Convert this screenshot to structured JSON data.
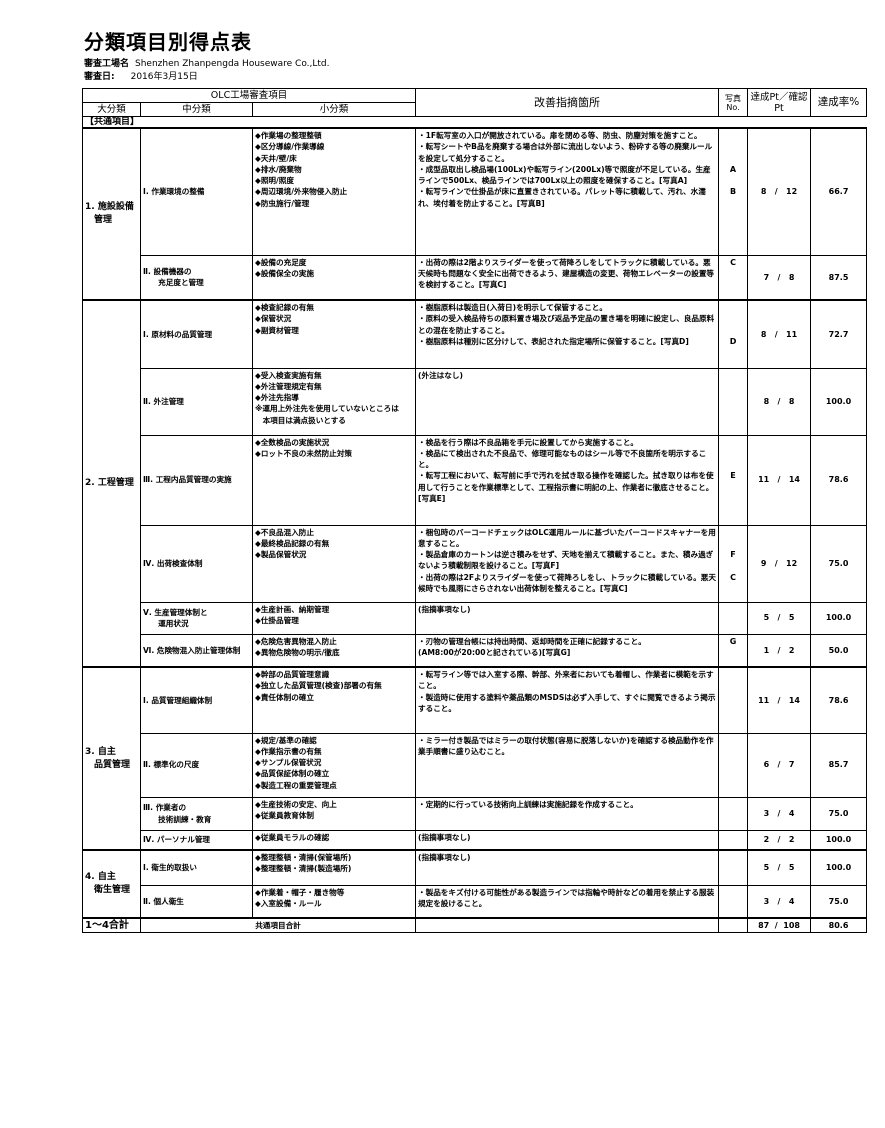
{
  "title": "分類項目別得点表",
  "factory_label": "審査工場名",
  "factory_name": "Shenzhen Zhanpengda Houseware Co.,Ltd.",
  "date_label": "審査日:",
  "date_value": "2016年3月15日",
  "header": {
    "olc": "OLC工場審査項目",
    "large": "大分類",
    "middle": "中分類",
    "small": "小分類",
    "findings": "改善指摘箇所",
    "photo": "写真\nNo.",
    "points": "達成Pt／確認Pt",
    "rate": "達成率%"
  },
  "section_label": "【共通項目】",
  "groups": [
    {
      "name": "1. 施設設備\n　管理",
      "rows": [
        {
          "mid": "Ⅰ. 作業環境の整備",
          "sub": "◆作業場の整理整頓\n◆区分導線/作業導線\n◆天井/壁/床\n◆排水/廃棄物\n◆照明/照度\n◆周辺環境/外来物侵入防止\n◆防虫施行/管理",
          "find": "・1F転写室の入口が開放されている。扉を閉める等、防虫、防塵対策を施すこと。\n・転写シートやB品を廃棄する場合は外部に流出しないよう、粉砕する等の廃棄ルールを設定して処分すること。\n・成型品取出し検品場(100Lx)や転写ライン(200Lx)等で照度が不足している。生産ラインで500Lx、検品ラインでは700Lx以上の照度を確保すること。[写真A]\n・転写ラインで仕掛品が床に直置きされている。パレット等に積載して、汚れ、水濡れ、埃付着を防止すること。[写真B]",
          "photo": "\n\n\nA\n\nB",
          "got": "8",
          "total": "12",
          "rate": "66.7"
        },
        {
          "mid": "Ⅱ. 設備機器の\n　　充足度と管理",
          "sub": "◆設備の充足度\n◆設備保全の実施",
          "find": "・出荷の際は2階よりスライダーを使って荷降ろしをしてトラックに積載している。悪天候時も問題なく安全に出荷できるよう、建屋構造の変更、荷物エレベーターの設置等を検討すること。[写真C]",
          "photo": "C",
          "got": "7",
          "total": "8",
          "rate": "87.5"
        }
      ]
    },
    {
      "name": "2. 工程管理",
      "rows": [
        {
          "mid": "Ⅰ. 原材料の品質管理",
          "sub": "◆検査記録の有無\n◆保管状況\n◆副資材管理",
          "find": "・樹脂原料は製造日(入荷日)を明示して保管すること。\n・原料の受入検品待ちの原料置き場及び返品予定品の置き場を明確に設定し、良品原料との混在を防止すること。\n・樹脂原料は種別に区分けして、表記された指定場所に保管すること。[写真D]",
          "photo": "\n\n\nD",
          "got": "8",
          "total": "11",
          "rate": "72.7"
        },
        {
          "mid": "Ⅱ. 外注管理",
          "sub": "◆受入検査実施有無\n◆外注管理規定有無\n◆外注先指導\n※運用上外注先を使用していないところは\n　本項目は満点扱いとする",
          "find": "(外注はなし)",
          "photo": "",
          "got": "8",
          "total": "8",
          "rate": "100.0"
        },
        {
          "mid": "Ⅲ. 工程内品質管理の実施",
          "sub": "◆全数検品の実施状況\n◆ロット不良の未然防止対策",
          "find": "・検品を行う際は不良品箱を手元に設置してから実施すること。\n・検品にて検出された不良品で、修理可能なものはシール等で不良箇所を明示すること。\n・転写工程において、転写前に手で汚れを拭き取る操作を確認した。拭き取りは布を使用して行うことを作業標準として、工程指示書に明記の上、作業者に徹底させること。[写真E]",
          "photo": "\n\n\nE",
          "got": "11",
          "total": "14",
          "rate": "78.6"
        },
        {
          "mid": "Ⅳ. 出荷検査体制",
          "sub": "◆不良品混入防止\n◆最終検品記録の有無\n◆製品保管状況",
          "find": "・梱包時のバーコードチェックはOLC運用ルールに基づいたバーコードスキャナーを用意すること。\n・製品倉庫のカートンは逆さ積みをせず、天地を揃えて積載すること。また、積み過ぎないよう積載制限を設けること。[写真F]\n・出荷の際は2Fよりスライダーを使って荷降ろしをし、トラックに積載している。悪天候時でも風雨にさらされない出荷体制を整えること。[写真C]",
          "photo": "\n\nF\n\nC",
          "got": "9",
          "total": "12",
          "rate": "75.0"
        },
        {
          "mid": "Ⅴ. 生産管理体制と\n　　運用状況",
          "sub": "◆生産計画、納期管理\n◆仕掛品管理",
          "find": "(指摘事項なし)",
          "photo": "",
          "got": "5",
          "total": "5",
          "rate": "100.0"
        },
        {
          "mid": "Ⅵ. 危険物混入防止管理体制",
          "sub": "◆危険危害異物混入防止\n◆異物危険物の明示/徹底",
          "find": "・刃物の管理台帳には持出時間、返却時間を正確に記録すること。\n(AM8:00が20:00と記されている)[写真G]",
          "photo": "G",
          "got": "1",
          "total": "2",
          "rate": "50.0"
        }
      ]
    },
    {
      "name": "3. 自主\n　品質管理",
      "rows": [
        {
          "mid": "Ⅰ. 品質管理組織体制",
          "sub": "◆幹部の品質管理意識\n◆独立した品質管理(検査)部署の有無\n◆責任体制の確立",
          "find": "・転写ライン等では入室する際、幹部、外来者においても着帽し、作業者に模範を示すこと。\n・製造時に使用する塗料や薬品類のMSDSは必ず入手して、すぐに閲覧できるよう掲示すること。",
          "photo": "",
          "got": "11",
          "total": "14",
          "rate": "78.6"
        },
        {
          "mid": "Ⅱ. 標準化の尺度",
          "sub": "◆規定/基準の確認\n◆作業指示書の有無\n◆サンプル保管状況\n◆品質保証体制の確立\n◆製造工程の重要管理点",
          "find": "・ミラー付き製品ではミラーの取付状態(容易に脱落しないか)を確認する検品動作を作業手順書に盛り込むこと。",
          "photo": "",
          "got": "6",
          "total": "7",
          "rate": "85.7"
        },
        {
          "mid": "Ⅲ. 作業者の\n　　技術訓練・教育",
          "sub": "◆生産技術の安定、向上\n◆従業員教育体制",
          "find": "・定期的に行っている技術向上訓練は実施記録を作成すること。",
          "photo": "",
          "got": "3",
          "total": "4",
          "rate": "75.0"
        },
        {
          "mid": "Ⅳ. パーソナル管理",
          "sub": "◆従業員モラルの確認",
          "find": "(指摘事項なし)",
          "photo": "",
          "got": "2",
          "total": "2",
          "rate": "100.0"
        }
      ]
    },
    {
      "name": "4. 自主\n　衛生管理",
      "rows": [
        {
          "mid": "Ⅰ. 衛生的取扱い",
          "sub": "◆整理整頓・清掃(保管場所)\n◆整理整頓・清掃(製造場所)",
          "find": "(指摘事項なし)",
          "photo": "",
          "got": "5",
          "total": "5",
          "rate": "100.0"
        },
        {
          "mid": "Ⅱ. 個人衛生",
          "sub": "◆作業着・帽子・履き物等\n◆入室設備・ルール",
          "find": "・製品をキズ付ける可能性がある製造ラインでは指輪や時計などの着用を禁止する服装規定を設けること。",
          "photo": "",
          "got": "3",
          "total": "4",
          "rate": "75.0"
        }
      ]
    }
  ],
  "total_row": {
    "label": "1～4合計",
    "mid": "共通項目合計",
    "got": "87",
    "total": "108",
    "rate": "80.6"
  }
}
